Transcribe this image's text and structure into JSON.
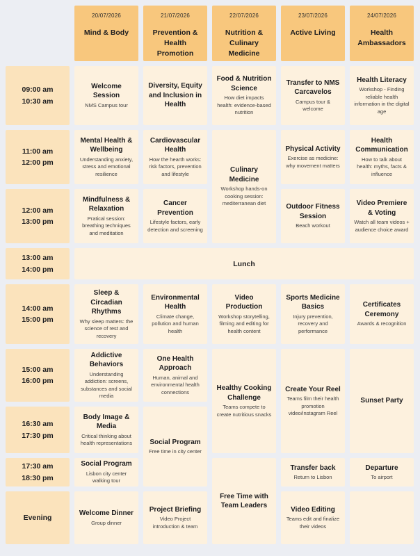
{
  "colors": {
    "header_bg": "#F8C77D",
    "time_bg": "#FBE3BC",
    "session_bg": "#FDF1DE",
    "page_bg": "#ECEEF3",
    "text": "#1D1D1F"
  },
  "schedule": {
    "lunch_label": "Lunch",
    "time_slots": [
      {
        "start": "09:00 am",
        "end": "10:30 am"
      },
      {
        "start": "11:00 am",
        "end": "12:00 pm"
      },
      {
        "start": "12:00 am",
        "end": "13:00 pm"
      },
      {
        "start": "13:00 am",
        "end": "14:00 pm"
      },
      {
        "start": "14:00 am",
        "end": "15:00 pm"
      },
      {
        "start": "15:00 am",
        "end": "16:00 pm"
      },
      {
        "start": "16:30 am",
        "end": "17:30 pm"
      },
      {
        "start": "17:30 am",
        "end": "18:30 pm"
      },
      {
        "label": "Evening"
      }
    ],
    "days": [
      {
        "date": "20/07/2026",
        "track": "Mind & Body",
        "sessions": [
          {
            "slot": "09:00-10:30",
            "title": "Welcome Session",
            "desc": "NMS Campus tour"
          },
          {
            "slot": "11:00-12:00",
            "title": "Mental Health & Wellbeing",
            "desc": "Understanding anxiety, stress and emotional resilience"
          },
          {
            "slot": "12:00-13:00",
            "title": "Mindfulness & Relaxation",
            "desc": "Pratical session: breathing techniques and meditation"
          },
          {
            "slot": "14:00-15:00",
            "title": "Sleep & Circadian Rhythms",
            "desc": "Why sleep matters: the science of rest and recovery"
          },
          {
            "slot": "15:00-16:00",
            "title": "Addictive Behaviors",
            "desc": "Understanding addiction: screens, substances and social media"
          },
          {
            "slot": "16:30-17:30",
            "title": "Body Image & Media",
            "desc": "Critical thinking about health representations"
          },
          {
            "slot": "17:30-18:30",
            "title": "Social Program",
            "desc": "Lisbon city center walking tour"
          },
          {
            "slot": "Evening",
            "title": "Welcome Dinner",
            "desc": "Group dinner"
          }
        ]
      },
      {
        "date": "21/07/2026",
        "track": "Prevention & Health Promotion",
        "sessions": [
          {
            "slot": "09:00-10:30",
            "title": "Diversity, Equity and Inclusion in Health",
            "desc": ""
          },
          {
            "slot": "11:00-12:00",
            "title": "Cardiovascular Health",
            "desc": "How the hearth works: risk factors, prevention and lifestyle"
          },
          {
            "slot": "12:00-13:00",
            "title": "Cancer Prevention",
            "desc": "Lifestyle factors, early detection and screening"
          },
          {
            "slot": "14:00-15:00",
            "title": "Environmental Health",
            "desc": "Climate change, pollution and human health"
          },
          {
            "slot": "15:00-16:00",
            "title": "One Health Approach",
            "desc": "Human, animal and environmental health connections"
          },
          {
            "slot": "16:30-18:30",
            "title": "Social Program",
            "desc": "Free time in city center"
          },
          {
            "slot": "Evening",
            "title": "Project Briefing",
            "desc": "Video Project introduction & team"
          }
        ]
      },
      {
        "date": "22/07/2026",
        "track": "Nutrition & Culinary Medicine",
        "sessions": [
          {
            "slot": "09:00-10:30",
            "title": "Food & Nutrition Science",
            "desc": "How diet impacts health: evidence-based nutrition"
          },
          {
            "slot": "11:00-13:00",
            "title": "Culinary Medicine",
            "desc": "Workshop hands-on cooking session: mediterranean diet"
          },
          {
            "slot": "14:00-15:00",
            "title": "Video Production",
            "desc": "Workshop storytelling, filming and editing for health content"
          },
          {
            "slot": "15:00-17:30",
            "title": "Healthy Cooking Challenge",
            "desc": "Teams compete to create nutritious snacks"
          },
          {
            "slot": "17:30-Evening",
            "title": "Free Time with Team Leaders",
            "desc": ""
          }
        ]
      },
      {
        "date": "23/07/2026",
        "track": "Active Living",
        "sessions": [
          {
            "slot": "09:00-10:30",
            "title": "Transfer to NMS Carcavelos",
            "desc": "Campus tour & welcome"
          },
          {
            "slot": "11:00-12:00",
            "title": "Physical Activity",
            "desc": "Exercise as medicine: why movement matters"
          },
          {
            "slot": "12:00-13:00",
            "title": "Outdoor Fitness Session",
            "desc": "Beach workout"
          },
          {
            "slot": "14:00-15:00",
            "title": "Sports Medicine Basics",
            "desc": "Injury prevention, recovery and performance"
          },
          {
            "slot": "15:00-17:30",
            "title": "Create Your Reel",
            "desc": "Teams film their health promotion video/instagram Reel"
          },
          {
            "slot": "17:30-18:30",
            "title": "Transfer back",
            "desc": "Return to Lisbon"
          },
          {
            "slot": "Evening",
            "title": "Video Editing",
            "desc": "Teams edit and finalize their videos"
          }
        ]
      },
      {
        "date": "24/07/2026",
        "track": "Health Ambassadors",
        "sessions": [
          {
            "slot": "09:00-10:30",
            "title": "Health Literacy",
            "desc": "Workshop - Finding reliable health information in the digital age"
          },
          {
            "slot": "11:00-12:00",
            "title": "Health Communication",
            "desc": "How to talk about health: myths, facts & influence"
          },
          {
            "slot": "12:00-13:00",
            "title": "Video Premiere & Voting",
            "desc": "Watch all team videos + audience choice award"
          },
          {
            "slot": "14:00-15:00",
            "title": "Certificates Ceremony",
            "desc": "Awards & recognition"
          },
          {
            "slot": "15:00-17:30",
            "title": "Sunset Party",
            "desc": ""
          },
          {
            "slot": "17:30-18:30",
            "title": "Departure",
            "desc": "To airport"
          },
          {
            "slot": "Evening",
            "title": "",
            "desc": ""
          }
        ]
      }
    ]
  }
}
